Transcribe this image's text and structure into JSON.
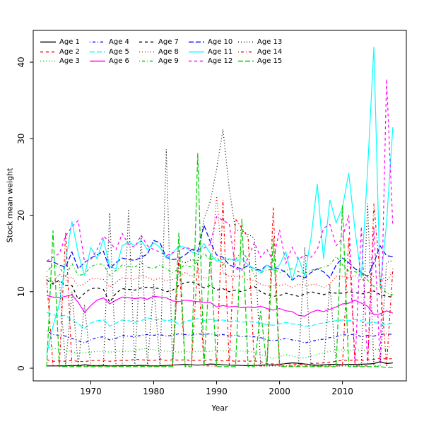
{
  "figure": {
    "background_color": "#ffffff",
    "plot_border_color": "#000000"
  },
  "legend": {
    "columns": 5,
    "rows": 3,
    "entries": [
      "Age 1",
      "Age 2",
      "Age 3",
      "Age 4",
      "Age 5",
      "Age 6",
      "Age 7",
      "Age 8",
      "Age 9",
      "Age 10",
      "Age 11",
      "Age 12",
      "Age 13",
      "Age 14",
      "Age 15"
    ]
  },
  "chart_data": {
    "type": "line",
    "title": "",
    "xlabel": "Year",
    "ylabel": "Stock mean weight",
    "x_ticks": [
      1970,
      1980,
      1990,
      2000,
      2010
    ],
    "y_ticks": [
      0,
      10,
      20,
      30,
      40
    ],
    "xlim": [
      1960.85,
      2020.15
    ],
    "ylim": [
      -1.66,
      44.16
    ],
    "grid": false,
    "legend_position": "top-left-inside",
    "years": [
      1963,
      1964,
      1965,
      1966,
      1967,
      1968,
      1969,
      1970,
      1971,
      1972,
      1973,
      1974,
      1975,
      1976,
      1977,
      1978,
      1979,
      1980,
      1981,
      1982,
      1983,
      1984,
      1985,
      1986,
      1987,
      1988,
      1989,
      1990,
      1991,
      1992,
      1993,
      1994,
      1995,
      1996,
      1997,
      1998,
      1999,
      2000,
      2001,
      2002,
      2003,
      2004,
      2005,
      2006,
      2007,
      2008,
      2009,
      2010,
      2011,
      2012,
      2013,
      2014,
      2015,
      2016,
      2017,
      2018
    ],
    "series": [
      {
        "name": "Age 1",
        "color": "#000000",
        "linestyle": "solid",
        "values": [
          0.3,
          0.3,
          0.32,
          0.3,
          0.35,
          0.32,
          0.46,
          0.35,
          0.33,
          0.35,
          0.3,
          0.32,
          0.35,
          0.33,
          0.34,
          0.36,
          0.35,
          0.3,
          0.32,
          0.35,
          0.4,
          0.45,
          0.5,
          0.45,
          0.4,
          0.45,
          0.55,
          0.5,
          0.45,
          0.4,
          0.38,
          0.35,
          0.33,
          0.35,
          0.4,
          0.45,
          0.4,
          0.5,
          0.6,
          0.7,
          0.65,
          0.55,
          0.45,
          0.4,
          0.45,
          0.5,
          0.5,
          0.45,
          0.5,
          0.5,
          0.52,
          0.55,
          0.6,
          0.85,
          0.6,
          0.7
        ]
      },
      {
        "name": "Age 2",
        "color": "#FF0000",
        "linestyle": "dashed",
        "values": [
          1.1,
          0.9,
          0.95,
          0.9,
          1.0,
          0.9,
          0.85,
          1.0,
          1.0,
          1.05,
          0.9,
          0.95,
          1.05,
          1.0,
          1.17,
          1.1,
          1.05,
          1.0,
          1.2,
          1.0,
          1.1,
          1.05,
          1.1,
          1.0,
          1.05,
          1.0,
          1.1,
          1.0,
          0.95,
          1.0,
          0.9,
          0.95,
          0.9,
          0.95,
          0.85,
          0.6,
          0.55,
          0.5,
          0.6,
          0.55,
          0.5,
          0.5,
          0.6,
          0.65,
          0.7,
          0.8,
          0.9,
          1.05,
          1.0,
          1.1,
          1.0,
          1.1,
          1.15,
          1.3,
          1.2,
          1.25
        ]
      },
      {
        "name": "Age 3",
        "color": "#00CD00",
        "linestyle": "dotted",
        "values": [
          2.8,
          2.6,
          2.5,
          2.4,
          2.1,
          2.0,
          2.0,
          2.1,
          2.2,
          2.2,
          2.1,
          2.2,
          2.25,
          2.2,
          2.3,
          2.5,
          2.6,
          2.4,
          2.3,
          2.2,
          2.2,
          2.1,
          2.2,
          2.1,
          2.2,
          2.15,
          2.2,
          2.3,
          2.25,
          2.3,
          2.2,
          2.25,
          2.2,
          2.1,
          1.8,
          1.5,
          1.3,
          1.5,
          1.8,
          1.6,
          1.4,
          1.3,
          1.6,
          1.8,
          2.0,
          2.2,
          2.25,
          2.4,
          2.35,
          2.4,
          2.35,
          2.4,
          2.45,
          2.5,
          2.6,
          3.0
        ]
      },
      {
        "name": "Age 4",
        "color": "#0000FF",
        "linestyle": "dotdash",
        "values": [
          4.9,
          4.4,
          4.3,
          4.2,
          3.9,
          3.6,
          3.3,
          3.7,
          4.0,
          4.1,
          3.7,
          3.9,
          4.25,
          4.2,
          4.1,
          4.3,
          4.4,
          4.3,
          4.4,
          4.2,
          4.3,
          4.5,
          4.4,
          4.3,
          4.5,
          4.4,
          4.5,
          4.3,
          4.4,
          4.2,
          4.3,
          4.1,
          4.2,
          4.1,
          4.0,
          3.7,
          3.6,
          3.7,
          3.9,
          3.7,
          3.6,
          3.3,
          3.5,
          3.7,
          3.8,
          4.0,
          4.1,
          4.4,
          4.3,
          4.5,
          4.1,
          4.3,
          4.2,
          4.4,
          4.5,
          4.4
        ]
      },
      {
        "name": "Age 5",
        "color": "#00FFFF",
        "linestyle": "longdash",
        "values": [
          7.3,
          7.0,
          6.8,
          6.9,
          6.3,
          5.8,
          5.2,
          5.9,
          6.2,
          6.3,
          5.5,
          5.9,
          6.3,
          6.2,
          6.0,
          6.2,
          6.6,
          6.3,
          6.4,
          6.2,
          6.3,
          5.7,
          6.1,
          6.3,
          6.5,
          6.2,
          6.4,
          6.2,
          6.3,
          6.1,
          6.2,
          6.0,
          6.1,
          6.0,
          5.9,
          5.7,
          5.6,
          5.8,
          6.0,
          5.8,
          5.7,
          5.5,
          5.5,
          5.8,
          5.9,
          6.1,
          6.2,
          6.3,
          6.2,
          6.4,
          6.2,
          5.9,
          6.0,
          5.8,
          5.7,
          5.9
        ]
      },
      {
        "name": "Age 6",
        "color": "#FF00FF",
        "linestyle": "solid",
        "values": [
          9.5,
          9.3,
          9.2,
          9.4,
          9.6,
          8.6,
          7.3,
          8.2,
          8.9,
          9.2,
          8.4,
          8.9,
          9.3,
          9.2,
          9.1,
          9.2,
          9.0,
          9.4,
          9.3,
          9.2,
          8.8,
          8.7,
          8.9,
          8.8,
          8.7,
          8.6,
          8.6,
          8.0,
          8.2,
          8.0,
          8.1,
          7.9,
          8.0,
          7.9,
          8.1,
          7.8,
          7.6,
          7.8,
          7.5,
          7.4,
          6.9,
          6.8,
          7.3,
          7.6,
          7.4,
          7.7,
          8.0,
          8.4,
          8.5,
          8.9,
          8.5,
          8.1,
          7.0,
          7.1,
          7.5,
          7.2
        ]
      },
      {
        "name": "Age 7",
        "color": "#000000",
        "linestyle": "dashed",
        "values": [
          11.5,
          11.0,
          11.5,
          10.8,
          10.8,
          9.0,
          9.8,
          10.4,
          10.5,
          10.3,
          8.6,
          9.8,
          10.4,
          10.3,
          10.2,
          10.5,
          10.6,
          10.5,
          10.4,
          10.0,
          10.2,
          10.8,
          11.2,
          11.3,
          11.0,
          10.5,
          10.8,
          10.2,
          10.4,
          10.0,
          10.2,
          10.0,
          10.3,
          10.7,
          10.0,
          9.6,
          9.4,
          9.5,
          9.8,
          9.6,
          9.4,
          9.7,
          10.0,
          9.8,
          9.6,
          9.9,
          9.8,
          9.8,
          10.0,
          9.9,
          9.7,
          9.9,
          10.1,
          9.6,
          9.4,
          9.3
        ]
      },
      {
        "name": "Age 8",
        "color": "#FF0000",
        "linestyle": "dotted",
        "values": [
          11.6,
          11.3,
          12.3,
          11.5,
          11.9,
          10.7,
          11.0,
          11.7,
          11.7,
          11.6,
          10.6,
          11.2,
          11.8,
          11.7,
          11.6,
          12.1,
          11.9,
          11.5,
          11.8,
          11.4,
          11.6,
          12.0,
          12.5,
          12.0,
          12.5,
          11.8,
          11.8,
          22.5,
          12.5,
          12.0,
          12.0,
          12.0,
          11.5,
          11.5,
          11.0,
          10.7,
          10.8,
          10.8,
          11.0,
          10.5,
          11.0,
          10.8,
          10.9,
          11.0,
          10.5,
          11.1,
          12.0,
          12.0,
          11.8,
          12.1,
          11.5,
          11.8,
          12.0,
          12.1,
          11.4,
          12.6
        ]
      },
      {
        "name": "Age 9",
        "color": "#00CD00",
        "linestyle": "dotdash",
        "values": [
          12.6,
          13.5,
          13.2,
          12.0,
          13.7,
          12.1,
          12.3,
          13.3,
          13.6,
          13.6,
          12.1,
          12.8,
          13.5,
          13.3,
          13.2,
          13.8,
          13.2,
          13.0,
          13.5,
          13.0,
          12.5,
          13.0,
          13.5,
          13.2,
          14.0,
          15.0,
          14.2,
          14.5,
          13.5,
          14.3,
          14.2,
          15.3,
          14.2,
          12.0,
          12.5,
          12.8,
          13.0,
          12.5,
          12.8,
          13.0,
          12.6,
          12.4,
          12.8,
          13.0,
          13.2,
          13.5,
          14.6,
          13.5,
          12.7,
          12.6,
          12.4,
          11.5,
          10.7,
          10.9,
          9.8,
          9.6
        ]
      },
      {
        "name": "Age 10",
        "color": "#0000FF",
        "linestyle": "longdash",
        "values": [
          14.0,
          13.9,
          13.5,
          13.2,
          15.2,
          13.0,
          13.8,
          14.4,
          14.8,
          15.3,
          13.0,
          13.8,
          14.4,
          14.2,
          14.1,
          14.5,
          14.9,
          16.7,
          16.4,
          14.5,
          14.2,
          14.3,
          14.8,
          15.5,
          15.3,
          18.7,
          16.5,
          14.8,
          14.5,
          13.5,
          13.2,
          13.0,
          13.4,
          13.0,
          12.8,
          13.5,
          13.0,
          13.0,
          12.5,
          11.5,
          12.1,
          11.8,
          12.5,
          13.0,
          12.6,
          11.8,
          13.5,
          14.4,
          13.8,
          13.0,
          12.5,
          12.0,
          13.8,
          16.0,
          14.7,
          14.6
        ]
      },
      {
        "name": "Age 11",
        "color": "#00FFFF",
        "linestyle": "solid",
        "values": [
          1.8,
          5.5,
          8.4,
          14.0,
          19.2,
          15.0,
          12.1,
          15.8,
          14.3,
          16.9,
          13.3,
          13.0,
          16.0,
          16.5,
          16.0,
          16.7,
          15.5,
          16.4,
          15.8,
          14.4,
          15.0,
          16.0,
          15.8,
          15.2,
          14.9,
          16.3,
          15.0,
          14.0,
          14.2,
          14.3,
          14.0,
          14.3,
          13.5,
          13.0,
          12.5,
          13.5,
          12.8,
          13.5,
          15.2,
          11.5,
          14.4,
          12.1,
          17.0,
          24.1,
          14.3,
          22.0,
          19.0,
          21.0,
          25.5,
          18.0,
          11.8,
          26.0,
          42.0,
          10.5,
          19.0,
          31.5
        ]
      },
      {
        "name": "Age 12",
        "color": "#FF00FF",
        "linestyle": "dashed",
        "values": [
          14.0,
          14.5,
          15.0,
          17.3,
          18.5,
          19.3,
          13.9,
          14.2,
          15.5,
          17.3,
          16.5,
          15.5,
          17.6,
          16.2,
          15.8,
          17.4,
          16.0,
          15.5,
          15.2,
          14.7,
          15.1,
          15.3,
          15.8,
          15.6,
          15.5,
          15.7,
          16.2,
          19.8,
          19.3,
          18.9,
          13.0,
          12.8,
          14.5,
          16.4,
          14.5,
          15.5,
          14.0,
          18.1,
          13.7,
          15.8,
          14.2,
          14.8,
          14.5,
          15.5,
          18.3,
          18.8,
          16.0,
          17.0,
          20.0,
          0.5,
          18.5,
          0.5,
          18.4,
          0.6,
          37.8,
          18.6
        ]
      },
      {
        "name": "Age 13",
        "color": "#000000",
        "linestyle": "dotted",
        "values": [
          12.0,
          11.2,
          11.5,
          0.3,
          10.0,
          0.3,
          8.3,
          0.3,
          0.3,
          0.3,
          20.3,
          0.3,
          0.3,
          20.8,
          0.3,
          17.3,
          0.3,
          11.0,
          0.3,
          28.6,
          0.3,
          14.0,
          13.8,
          14.2,
          14.0,
          19.5,
          21.8,
          26.0,
          31.2,
          23.5,
          18.0,
          18.0,
          17.5,
          17.0,
          0.3,
          0.3,
          0.3,
          0.3,
          0.3,
          0.3,
          0.3,
          15.8,
          0.3,
          0.3,
          0.3,
          11.0,
          0.3,
          0.3,
          0.3,
          0.3,
          0.3,
          21.5,
          0.3,
          0.3,
          13.8,
          14.1
        ]
      },
      {
        "name": "Age 14",
        "color": "#FF0000",
        "linestyle": "dotdash",
        "values": [
          11.6,
          0.3,
          0.3,
          17.8,
          0.3,
          0.3,
          0.3,
          0.3,
          0.3,
          0.3,
          0.3,
          0.3,
          0.3,
          0.3,
          0.3,
          0.3,
          0.3,
          0.3,
          0.3,
          0.3,
          0.3,
          14.6,
          0.3,
          0.3,
          13.8,
          0.3,
          0.3,
          0.3,
          22.0,
          0.3,
          19.5,
          18.3,
          17.1,
          0.3,
          0.3,
          0.3,
          21.0,
          0.3,
          0.3,
          0.3,
          0.3,
          0.3,
          0.3,
          0.3,
          0.3,
          0.3,
          0.3,
          0.3,
          17.0,
          0.3,
          0.3,
          0.3,
          21.5,
          11.8,
          0.3,
          13.0
        ]
      },
      {
        "name": "Age 15",
        "color": "#00CD00",
        "linestyle": "longdash",
        "values": [
          0.2,
          18.0,
          0.2,
          0.2,
          0.2,
          0.2,
          0.2,
          0.2,
          0.2,
          0.2,
          0.2,
          0.2,
          0.2,
          0.2,
          0.2,
          0.2,
          0.2,
          0.2,
          0.2,
          0.2,
          0.2,
          17.7,
          0.2,
          0.2,
          28.1,
          0.2,
          15.0,
          0.2,
          0.2,
          0.2,
          0.2,
          19.5,
          0.2,
          0.2,
          7.5,
          0.2,
          17.0,
          0.2,
          0.2,
          0.2,
          0.2,
          0.2,
          0.2,
          0.2,
          0.2,
          0.2,
          0.2,
          21.3,
          0.2,
          0.2,
          0.2,
          0.2,
          0.2,
          0.2,
          0.1,
          0.1
        ]
      }
    ]
  }
}
